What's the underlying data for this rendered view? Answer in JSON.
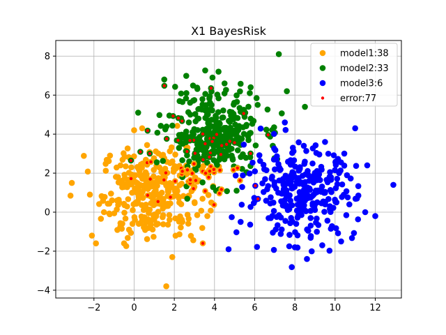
{
  "chart_data": {
    "type": "scatter",
    "title": "X1 BayesRisk",
    "xlabel": "",
    "ylabel": "",
    "xlim": [
      -3.9,
      13.3
    ],
    "ylim": [
      -4.4,
      8.8
    ],
    "xticks": [
      -2,
      0,
      2,
      4,
      6,
      8,
      10,
      12
    ],
    "yticks": [
      -4,
      -2,
      0,
      2,
      4,
      6,
      8
    ],
    "grid": true,
    "legend_position": "top-right",
    "series": [
      {
        "name": "model1:38",
        "color": "#ffa500",
        "center": [
          0.9,
          1.0
        ],
        "spread": [
          1.25,
          1.15
        ],
        "count": 300,
        "points": [
          [
            -3.1,
            1.5
          ],
          [
            -2.2,
            0.9
          ],
          [
            -2.1,
            -1.2
          ],
          [
            -1.9,
            -1.6
          ],
          [
            1.6,
            -3.8
          ],
          [
            1.9,
            -2.3
          ],
          [
            -1.2,
            2.9
          ],
          [
            0.0,
            4.2
          ],
          [
            0.4,
            4.3
          ],
          [
            -0.5,
            -1.6
          ],
          [
            2.4,
            -0.5
          ],
          [
            3.0,
            1.3
          ],
          [
            -1.5,
            0.0
          ],
          [
            -0.8,
            1.8
          ],
          [
            1.0,
            -0.4
          ]
        ]
      },
      {
        "name": "model2:33",
        "color": "#008000",
        "center": [
          4.0,
          4.0
        ],
        "spread": [
          1.15,
          1.1
        ],
        "count": 300,
        "points": [
          [
            7.2,
            8.1
          ],
          [
            3.9,
            6.9
          ],
          [
            4.2,
            7.2
          ],
          [
            1.5,
            6.8
          ],
          [
            0.2,
            5.1
          ],
          [
            5.8,
            6.4
          ],
          [
            2.6,
            6.1
          ],
          [
            6.9,
            3.4
          ],
          [
            5.1,
            1.1
          ],
          [
            8.5,
            5.4
          ],
          [
            7.6,
            6.2
          ],
          [
            4.5,
            6.6
          ]
        ]
      },
      {
        "name": "model3:6",
        "color": "#0000ff",
        "center": [
          8.3,
          1.0
        ],
        "spread": [
          1.35,
          1.15
        ],
        "count": 300,
        "points": [
          [
            12.9,
            1.4
          ],
          [
            11.5,
            0.0
          ],
          [
            11.0,
            4.3
          ],
          [
            10.3,
            -1.5
          ],
          [
            8.6,
            -2.4
          ],
          [
            4.7,
            -1.9
          ],
          [
            5.3,
            -0.5
          ],
          [
            11.6,
            2.4
          ],
          [
            9.5,
            3.6
          ],
          [
            7.5,
            4.6
          ],
          [
            12.0,
            -0.2
          ],
          [
            8.0,
            -1.8
          ]
        ]
      }
    ],
    "errors": {
      "name": "error:77",
      "color": "#ff0000",
      "count": 77,
      "region_center": [
        3.3,
        2.8
      ],
      "region_spread": [
        1.6,
        1.3
      ]
    },
    "legend_entries": [
      {
        "label": "model1:38",
        "color": "#ffa500",
        "size": "large"
      },
      {
        "label": "model2:33",
        "color": "#008000",
        "size": "large"
      },
      {
        "label": "model3:6",
        "color": "#0000ff",
        "size": "large"
      },
      {
        "label": "error:77",
        "color": "#ff0000",
        "size": "small"
      }
    ]
  }
}
